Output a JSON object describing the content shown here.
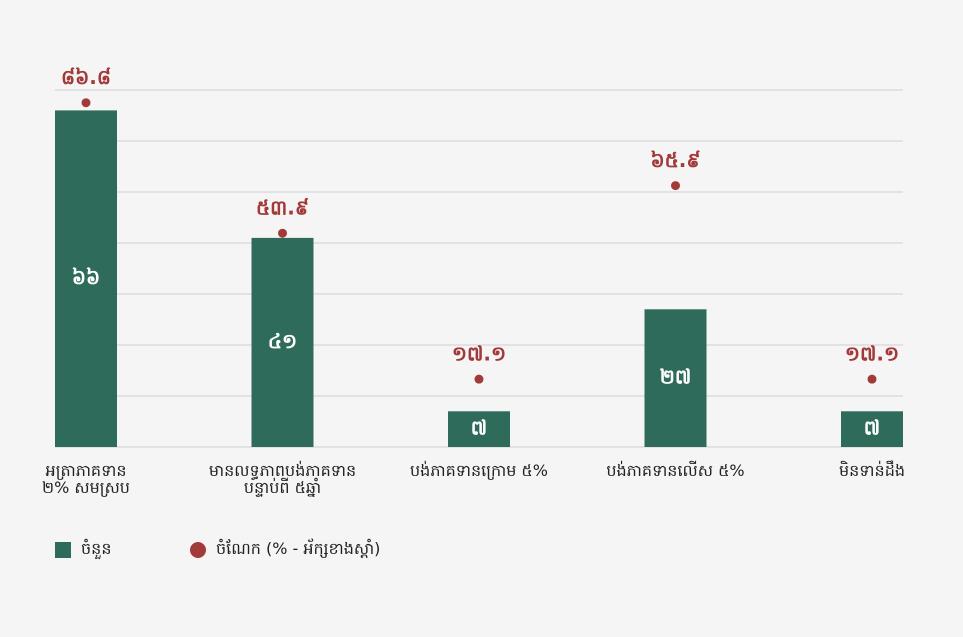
{
  "chart_data": {
    "type": "bar-dot",
    "categories": [
      "អត្រាភាគទាន\n២% សមស្រប",
      "មានលទ្ធភាពបង់ភាគទាន\nបន្ទាប់ពី ៥ឆ្នាំ",
      "បង់ភាគទានក្រោម ៥%",
      "បង់ភាគទានលើស ៥%",
      "មិនទាន់ដឹង"
    ],
    "series": [
      {
        "name": "ចំនួន",
        "color": "#2e6b5a",
        "values": [
          66,
          41,
          7,
          27,
          7
        ],
        "value_labels": [
          "៦៦",
          "៤១",
          "៧",
          "២៧",
          "៧"
        ]
      },
      {
        "name": "ចំណែក (% - អ័ក្សខាងស្តាំ)",
        "color": "#a33a3a",
        "axis": "y2",
        "values": [
          86.8,
          53.9,
          17.1,
          65.9,
          17.1
        ],
        "value_labels": [
          "៨៦.៨",
          "៥៣.៩",
          "១៧.១",
          "៦៥.៩",
          "១៧.១"
        ]
      }
    ],
    "ylim": [
      0,
      70
    ],
    "yticks": [
      0,
      10,
      20,
      30,
      40,
      50,
      60,
      70
    ],
    "y2lim": [
      0,
      90
    ],
    "grid": true
  }
}
